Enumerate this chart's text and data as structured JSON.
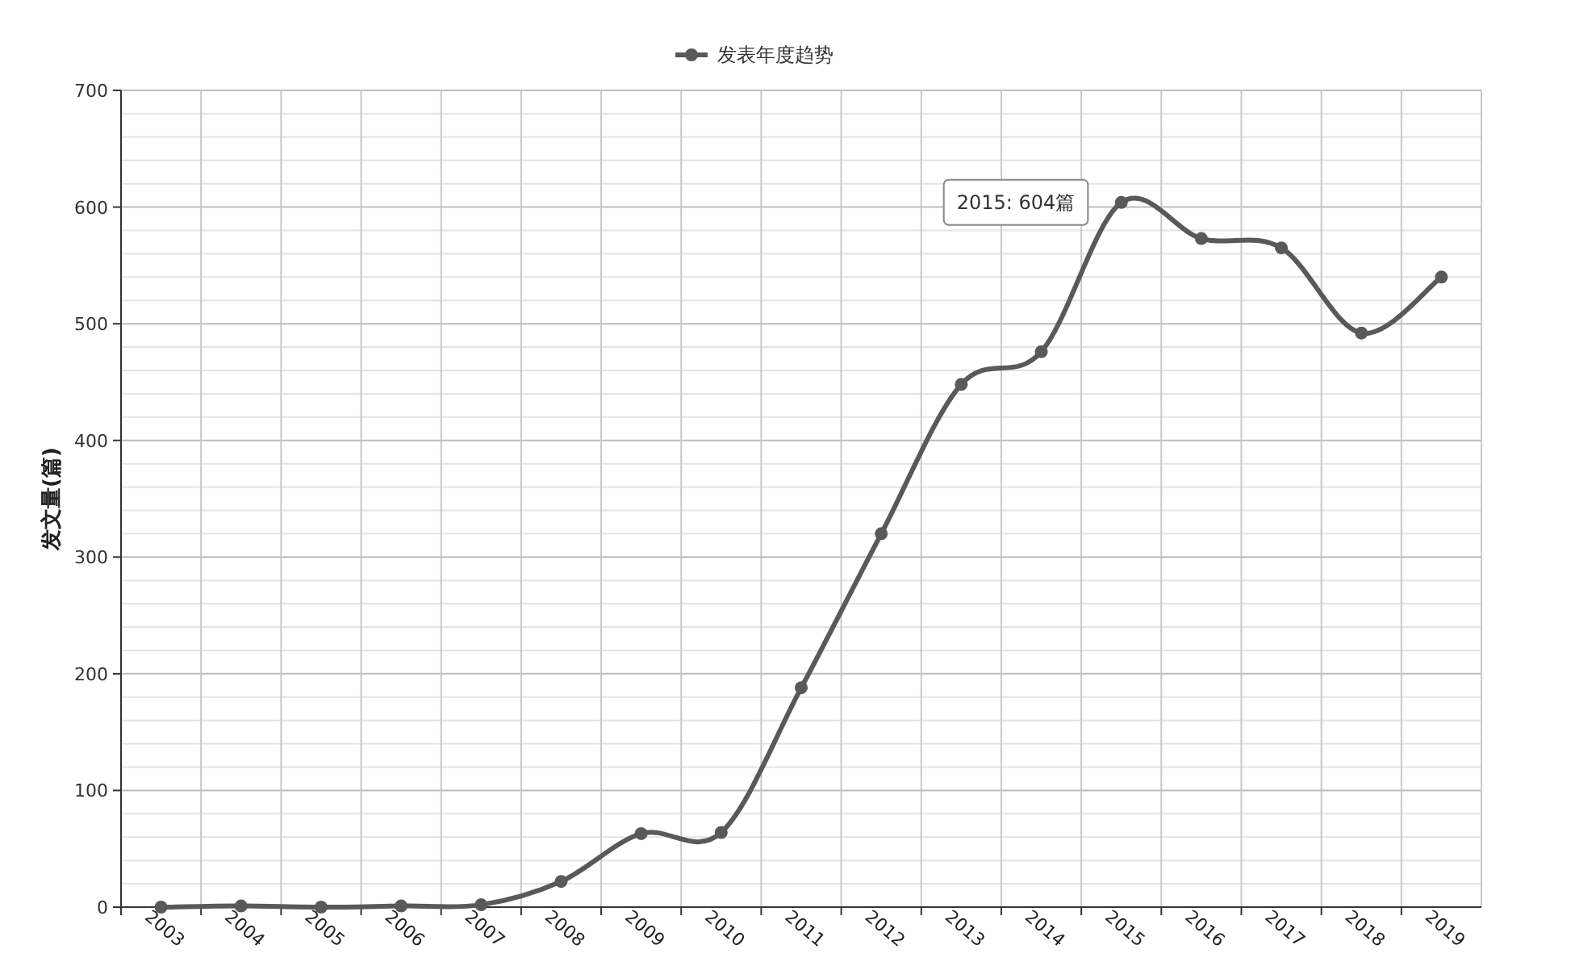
{
  "chart_data": {
    "type": "line",
    "ylabel": "发文量(篇)",
    "categories": [
      "2003",
      "2004",
      "2005",
      "2006",
      "2007",
      "2008",
      "2009",
      "2010",
      "2011",
      "2012",
      "2013",
      "2014",
      "2015",
      "2016",
      "2017",
      "2018",
      "2019"
    ],
    "series": [
      {
        "name": "发表年度趋势",
        "color": "#595959",
        "values": [
          0,
          1,
          0,
          1,
          2,
          22,
          63,
          64,
          188,
          320,
          448,
          476,
          604,
          573,
          565,
          492,
          540
        ]
      }
    ],
    "ylim": [
      0,
      700
    ],
    "yticks": [
      0,
      100,
      200,
      300,
      400,
      500,
      600,
      700
    ],
    "grid": true,
    "legend": "top",
    "marker": "circle",
    "annotations": [
      {
        "text": "2015: 604篇",
        "x": "2015",
        "y": 604
      }
    ]
  }
}
